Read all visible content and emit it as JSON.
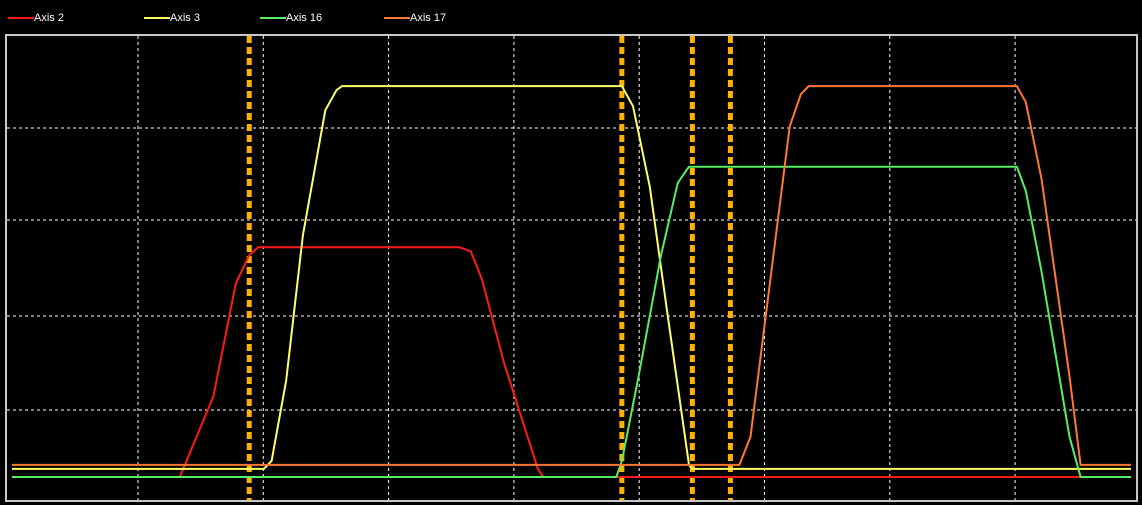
{
  "legend": [
    {
      "name": "Axis 2",
      "color": "#ff1a1a"
    },
    {
      "name": "Axis 3",
      "color": "#ffff66"
    },
    {
      "name": "Axis 16",
      "color": "#55ee66"
    },
    {
      "name": "Axis 17",
      "color": "#ff7733"
    }
  ],
  "chart_data": {
    "type": "line",
    "title": "",
    "xlabel": "",
    "ylabel": "",
    "grid": true,
    "legend_position": "top-left",
    "xlim": [
      0,
      100
    ],
    "ylim": [
      0,
      100
    ],
    "series": [
      {
        "name": "Axis 2",
        "color": "#ff1a1a",
        "x": [
          0,
          15.0,
          18.0,
          20.0,
          21.2,
          22.0,
          23.0,
          40.0,
          41.0,
          42.0,
          44.0,
          47.0,
          47.5,
          100
        ],
        "y": [
          0,
          0,
          20,
          48,
          55,
          57,
          57,
          57,
          56,
          49,
          28,
          2,
          0,
          0
        ]
      },
      {
        "name": "Axis 3",
        "color": "#ffff66",
        "x": [
          0,
          22.5,
          23.2,
          24.5,
          26.0,
          28.0,
          29.0,
          29.5,
          54.5,
          55.5,
          57.0,
          58.5,
          60.5,
          60.8,
          100
        ],
        "y": [
          2,
          2,
          4,
          24,
          60,
          91,
          96,
          97,
          97,
          92,
          72,
          42,
          3,
          2,
          2
        ]
      },
      {
        "name": "Axis 16",
        "color": "#55ee66",
        "x": [
          0,
          54.0,
          54.5,
          56.0,
          58.0,
          59.5,
          60.5,
          61.0,
          89.8,
          90.6,
          92.0,
          94.5,
          95.5,
          96.0,
          100
        ],
        "y": [
          0,
          0,
          4,
          25,
          55,
          73,
          77,
          77,
          77,
          71,
          51,
          10,
          0,
          0,
          0
        ]
      },
      {
        "name": "Axis 17",
        "color": "#ff7733",
        "x": [
          0,
          65.0,
          66.0,
          67.5,
          69.5,
          70.5,
          71.2,
          89.8,
          90.6,
          92.0,
          94.5,
          95.5,
          100
        ],
        "y": [
          3,
          3,
          10,
          43,
          87,
          95,
          97,
          97,
          93,
          74,
          25,
          3,
          3
        ]
      }
    ],
    "markers": {
      "color": "#ffb300",
      "x": [
        21.2,
        54.5,
        60.8,
        64.2
      ]
    }
  }
}
